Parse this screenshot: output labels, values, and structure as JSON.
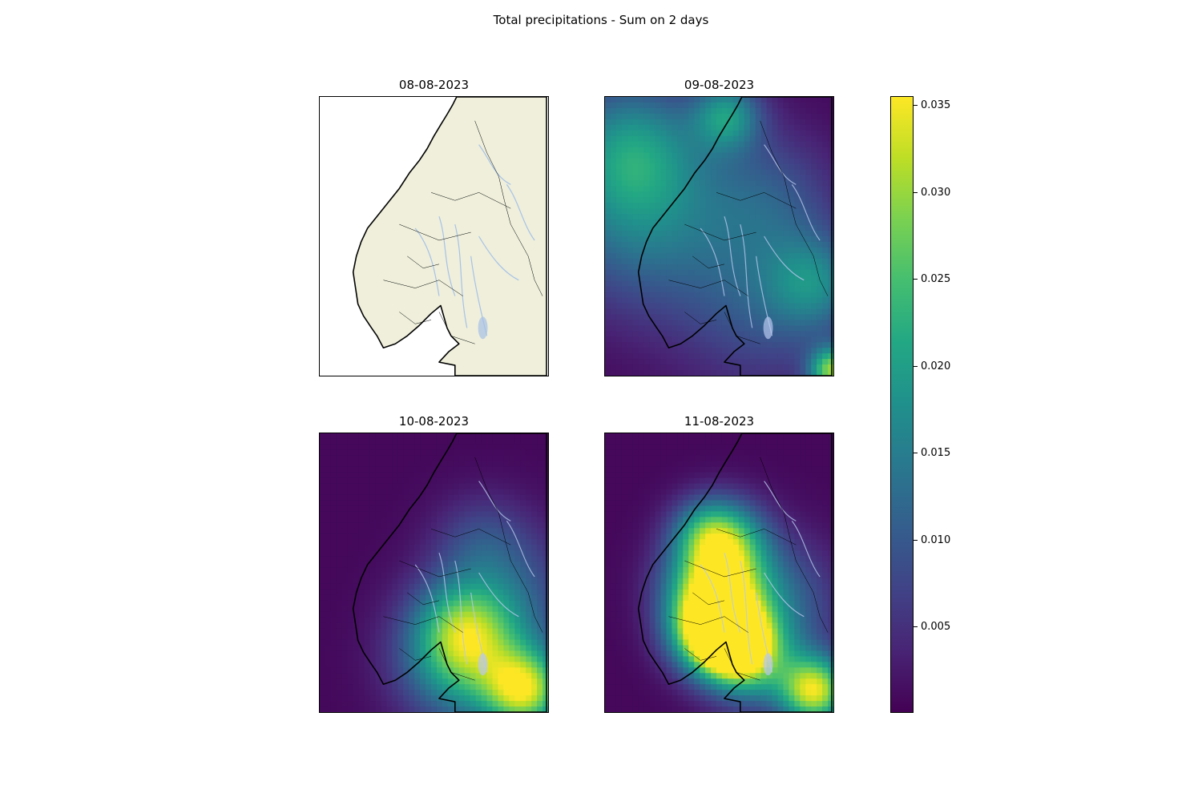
{
  "title": "Total precipitations - Sum on 2 days",
  "panels": [
    {
      "date": "08-08-2023",
      "type": "basemap"
    },
    {
      "date": "09-08-2023",
      "type": "precipitation"
    },
    {
      "date": "10-08-2023",
      "type": "precipitation"
    },
    {
      "date": "11-08-2023",
      "type": "precipitation"
    }
  ],
  "colorbar": {
    "colormap": "viridis",
    "min": 0,
    "max": 0.0355,
    "ticks": [
      "0.005",
      "0.010",
      "0.015",
      "0.020",
      "0.025",
      "0.030",
      "0.035"
    ]
  },
  "colors": {
    "land": "#efefdb",
    "ocean": "#ffffff",
    "rivers": "#a6c1e6",
    "coastline": "#000000"
  }
}
